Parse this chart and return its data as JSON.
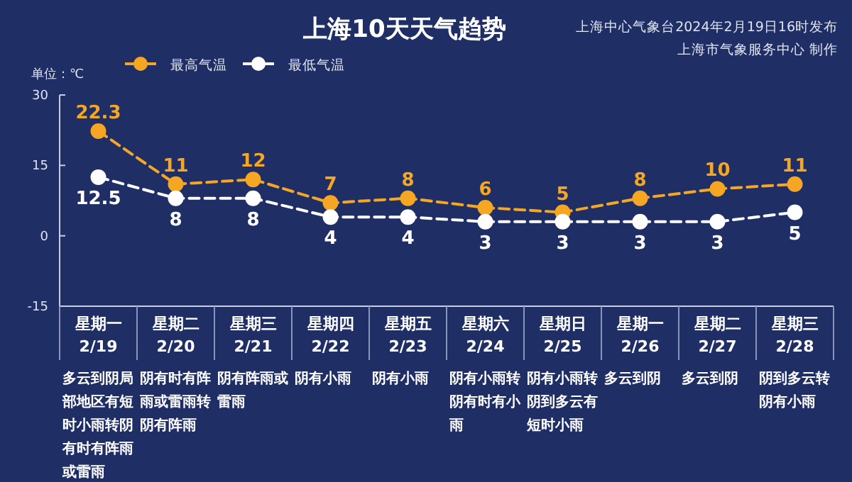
{
  "chart_data": {
    "type": "line",
    "title": "上海10天天气趋势",
    "ylabel": "单位：℃",
    "categories": [
      "星期一\n2/19",
      "星期二\n2/20",
      "星期三\n2/21",
      "星期四\n2/22",
      "星期五\n2/23",
      "星期六\n2/24",
      "星期日\n2/25",
      "星期一\n2/26",
      "星期二\n2/27",
      "星期三\n2/28"
    ],
    "series": [
      {
        "name": "最高气温",
        "color": "#f5a623",
        "values": [
          22.3,
          11,
          12,
          7,
          8,
          6,
          5,
          8,
          10,
          11
        ]
      },
      {
        "name": "最低气温",
        "color": "#ffffff",
        "values": [
          12.5,
          8,
          8,
          4,
          4,
          3,
          3,
          3,
          3,
          5
        ]
      }
    ],
    "ylim": [
      -15,
      30
    ],
    "yticks": [
      -15,
      0,
      15,
      30
    ],
    "data_labels": true,
    "legend": "top left",
    "marker": "circle",
    "line_style": "dashed",
    "annotations": [
      "上海中心气象台2024年2月19日16时发布",
      "上海市气象服务中心 制作",
      "多云到阴局部地区有短时小雨转阴有时有阵雨或雷雨",
      "阴有时有阵雨或雷雨转阴有阵雨",
      "阴有阵雨或雷雨",
      "阴有小雨",
      "阴有小雨",
      "阴有小雨转阴有时有小雨",
      "阴有小雨转阴到多云有短时小雨",
      "多云到阴",
      "多云到阴",
      "阴到多云转阴有小雨"
    ]
  }
}
